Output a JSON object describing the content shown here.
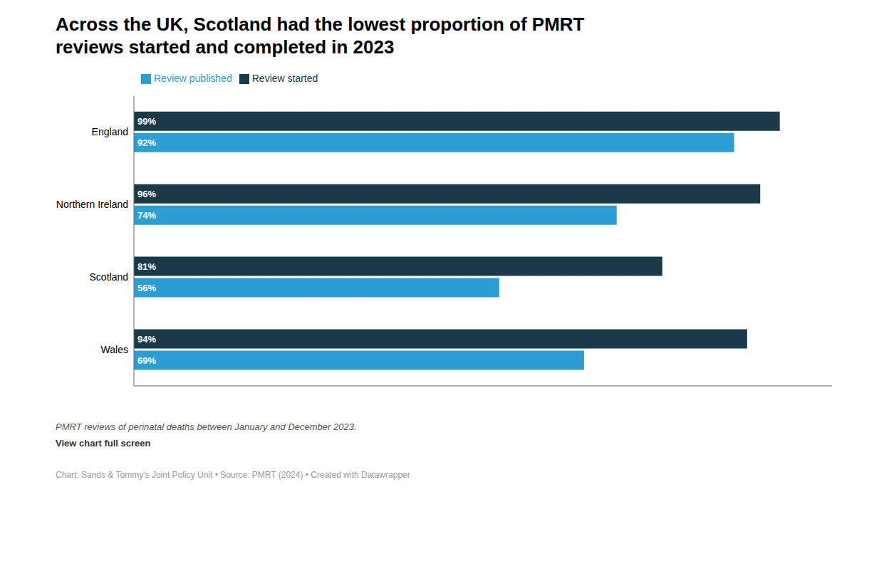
{
  "chart_data": {
    "type": "bar",
    "orientation": "horizontal",
    "title": "Across the UK, Scotland had the lowest proportion of PMRT\nreviews started and completed in 2023",
    "categories": [
      "England",
      "Northern Ireland",
      "Scotland",
      "Wales"
    ],
    "series": [
      {
        "name": "Review started",
        "color": "#1a3a4a",
        "values": [
          99,
          96,
          81,
          94
        ],
        "value_labels": [
          "99%",
          "96%",
          "81%",
          "94%"
        ]
      },
      {
        "name": "Review published",
        "color": "#2b9fd4",
        "values": [
          92,
          74,
          56,
          69
        ],
        "value_labels": [
          "92%",
          "74%",
          "56%",
          "69%"
        ]
      }
    ],
    "xlim": [
      0,
      107
    ],
    "tick_labels": "y",
    "grid": false,
    "legend": "top",
    "data_labels": true,
    "annotations": [
      "PMRT reviews of perinatal deaths between January and December 2023.",
      "View chart full screen",
      "Chart: Sands & Tommy’s Joint Policy Unit • Source: PMRT (2024) • Created with Datawrapper"
    ]
  }
}
